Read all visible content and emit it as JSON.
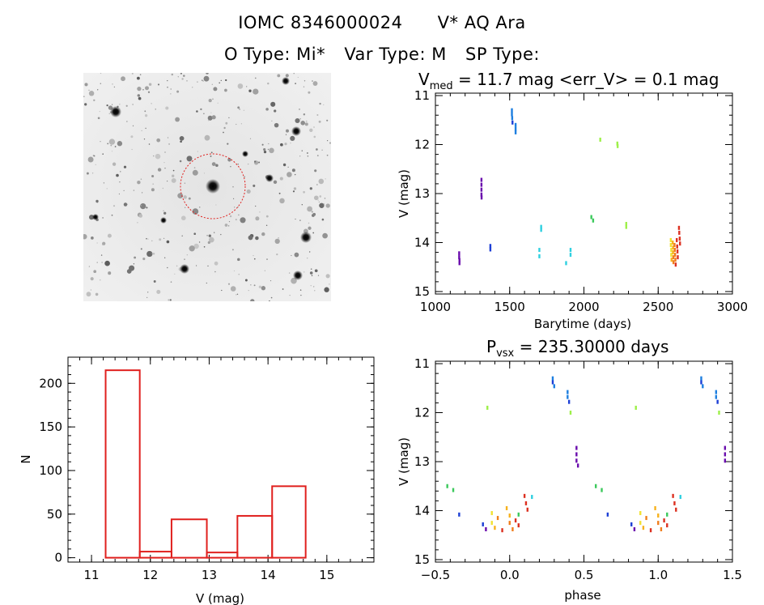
{
  "header": {
    "object_id": "IOMC 8346000024",
    "star_name": "V* AQ Ara",
    "o_type": "O Type: Mi*",
    "var_type": "Var Type: M",
    "sp_type": "SP Type:"
  },
  "colors": {
    "histogram": "#e0201e",
    "target_circle": "#e0201e",
    "season_palette": [
      "#6a0dad",
      "#1d3fd6",
      "#1e7fe0",
      "#2fd0e0",
      "#3cc95c",
      "#9ef04a",
      "#f2e233",
      "#f7b21e",
      "#f07e1c",
      "#dc3020"
    ]
  },
  "chart_data": [
    {
      "panel": "finder-image",
      "type": "image",
      "description_marks": [
        "star field",
        "target circle"
      ]
    },
    {
      "panel": "light-curve",
      "type": "scatter",
      "title": "V_med = 11.7 mag <err_V> = 0.1 mag",
      "title_parts": {
        "v": "V",
        "sub": "med",
        "rest": " = 11.7 mag <err_V> = 0.1 mag"
      },
      "xlabel": "Barytime (days)",
      "ylabel": "V (mag)",
      "xlim": [
        1000,
        3000
      ],
      "ylim": [
        15.05,
        10.95
      ],
      "xticks": [
        1000,
        1500,
        2000,
        2500,
        3000
      ],
      "yticks": [
        11,
        12,
        13,
        14,
        15
      ],
      "points": [
        {
          "x": 1160,
          "y": 14.22,
          "c": 0
        },
        {
          "x": 1160,
          "y": 14.3,
          "c": 0
        },
        {
          "x": 1162,
          "y": 14.36,
          "c": 0
        },
        {
          "x": 1162,
          "y": 14.42,
          "c": 0
        },
        {
          "x": 1310,
          "y": 12.72,
          "c": 0
        },
        {
          "x": 1310,
          "y": 12.82,
          "c": 0
        },
        {
          "x": 1310,
          "y": 12.92,
          "c": 0
        },
        {
          "x": 1310,
          "y": 13.02,
          "c": 0
        },
        {
          "x": 1311,
          "y": 13.08,
          "c": 0
        },
        {
          "x": 1370,
          "y": 14.07,
          "c": 1
        },
        {
          "x": 1370,
          "y": 14.14,
          "c": 1
        },
        {
          "x": 1515,
          "y": 11.3,
          "c": 2
        },
        {
          "x": 1515,
          "y": 11.38,
          "c": 2
        },
        {
          "x": 1517,
          "y": 11.46,
          "c": 2
        },
        {
          "x": 1519,
          "y": 11.55,
          "c": 1
        },
        {
          "x": 1540,
          "y": 11.6,
          "c": 2
        },
        {
          "x": 1540,
          "y": 11.68,
          "c": 2
        },
        {
          "x": 1540,
          "y": 11.75,
          "c": 2
        },
        {
          "x": 1700,
          "y": 14.15,
          "c": 3
        },
        {
          "x": 1700,
          "y": 14.28,
          "c": 3
        },
        {
          "x": 1712,
          "y": 13.68,
          "c": 3
        },
        {
          "x": 1712,
          "y": 13.74,
          "c": 3
        },
        {
          "x": 1880,
          "y": 14.42,
          "c": 3
        },
        {
          "x": 1910,
          "y": 14.15,
          "c": 3
        },
        {
          "x": 1910,
          "y": 14.25,
          "c": 3
        },
        {
          "x": 2050,
          "y": 13.48,
          "c": 4
        },
        {
          "x": 2062,
          "y": 13.55,
          "c": 4
        },
        {
          "x": 2110,
          "y": 11.9,
          "c": 5
        },
        {
          "x": 2225,
          "y": 11.98,
          "c": 5
        },
        {
          "x": 2227,
          "y": 12.03,
          "c": 5
        },
        {
          "x": 2285,
          "y": 13.62,
          "c": 5
        },
        {
          "x": 2285,
          "y": 13.68,
          "c": 5
        },
        {
          "x": 2585,
          "y": 13.95,
          "c": 6
        },
        {
          "x": 2585,
          "y": 14.05,
          "c": 6
        },
        {
          "x": 2588,
          "y": 14.15,
          "c": 6
        },
        {
          "x": 2588,
          "y": 14.25,
          "c": 6
        },
        {
          "x": 2590,
          "y": 14.35,
          "c": 7
        },
        {
          "x": 2598,
          "y": 14.0,
          "c": 7
        },
        {
          "x": 2600,
          "y": 14.1,
          "c": 7
        },
        {
          "x": 2600,
          "y": 14.2,
          "c": 7
        },
        {
          "x": 2602,
          "y": 14.3,
          "c": 8
        },
        {
          "x": 2603,
          "y": 14.4,
          "c": 8
        },
        {
          "x": 2610,
          "y": 14.05,
          "c": 8
        },
        {
          "x": 2612,
          "y": 14.15,
          "c": 8
        },
        {
          "x": 2614,
          "y": 14.25,
          "c": 8
        },
        {
          "x": 2616,
          "y": 14.35,
          "c": 8
        },
        {
          "x": 2618,
          "y": 14.45,
          "c": 9
        },
        {
          "x": 2625,
          "y": 13.95,
          "c": 9
        },
        {
          "x": 2628,
          "y": 14.08,
          "c": 9
        },
        {
          "x": 2630,
          "y": 14.18,
          "c": 9
        },
        {
          "x": 2632,
          "y": 14.3,
          "c": 9
        },
        {
          "x": 2640,
          "y": 13.7,
          "c": 9
        },
        {
          "x": 2642,
          "y": 13.8,
          "c": 9
        },
        {
          "x": 2645,
          "y": 13.92,
          "c": 9
        },
        {
          "x": 2647,
          "y": 14.02,
          "c": 9
        }
      ]
    },
    {
      "panel": "histogram",
      "type": "bar",
      "xlabel": "V (mag)",
      "ylabel": "N",
      "xlim": [
        10.6,
        15.8
      ],
      "ylim": [
        -5,
        230
      ],
      "xticks": [
        11,
        12,
        13,
        14,
        15
      ],
      "yticks": [
        0,
        50,
        100,
        150,
        200
      ],
      "bins": [
        {
          "x0": 11.24,
          "x1": 11.82,
          "n": 215
        },
        {
          "x0": 11.82,
          "x1": 12.36,
          "n": 7
        },
        {
          "x0": 12.36,
          "x1": 12.96,
          "n": 44
        },
        {
          "x0": 12.96,
          "x1": 13.48,
          "n": 6
        },
        {
          "x0": 13.48,
          "x1": 14.07,
          "n": 48
        },
        {
          "x0": 14.07,
          "x1": 14.64,
          "n": 82
        }
      ]
    },
    {
      "panel": "phased-light-curve",
      "type": "scatter",
      "title": "P_vsx = 235.30000 days",
      "title_parts": {
        "p": "P",
        "sub": "vsx",
        "rest": " = 235.30000 days"
      },
      "xlabel": "phase",
      "ylabel": "V (mag)",
      "xlim": [
        -0.5,
        1.5
      ],
      "ylim": [
        15.05,
        10.95
      ],
      "xticks": [
        -0.5,
        0.0,
        0.5,
        1.0,
        1.5
      ],
      "xtick_labels": [
        "−0.5",
        "0.0",
        "0.5",
        "1.0",
        "1.5"
      ],
      "yticks": [
        11,
        12,
        13,
        14,
        15
      ],
      "points": [
        {
          "x": -0.42,
          "y": 13.5,
          "c": 4
        },
        {
          "x": -0.38,
          "y": 13.58,
          "c": 4
        },
        {
          "x": -0.34,
          "y": 14.08,
          "c": 1
        },
        {
          "x": -0.18,
          "y": 14.28,
          "c": 1
        },
        {
          "x": -0.16,
          "y": 14.38,
          "c": 0
        },
        {
          "x": -0.15,
          "y": 11.9,
          "c": 5
        },
        {
          "x": -0.12,
          "y": 14.05,
          "c": 6
        },
        {
          "x": -0.12,
          "y": 14.25,
          "c": 6
        },
        {
          "x": -0.1,
          "y": 14.35,
          "c": 7
        },
        {
          "x": -0.08,
          "y": 14.15,
          "c": 8
        },
        {
          "x": -0.05,
          "y": 14.4,
          "c": 9
        },
        {
          "x": -0.02,
          "y": 13.95,
          "c": 7
        },
        {
          "x": 0.0,
          "y": 14.1,
          "c": 7
        },
        {
          "x": 0.0,
          "y": 14.25,
          "c": 8
        },
        {
          "x": 0.02,
          "y": 14.38,
          "c": 8
        },
        {
          "x": 0.04,
          "y": 14.2,
          "c": 9
        },
        {
          "x": 0.06,
          "y": 14.08,
          "c": 4
        },
        {
          "x": 0.06,
          "y": 14.3,
          "c": 9
        },
        {
          "x": 0.1,
          "y": 13.7,
          "c": 9
        },
        {
          "x": 0.11,
          "y": 13.85,
          "c": 9
        },
        {
          "x": 0.12,
          "y": 13.98,
          "c": 9
        },
        {
          "x": 0.15,
          "y": 13.72,
          "c": 3
        },
        {
          "x": 0.29,
          "y": 11.3,
          "c": 2
        },
        {
          "x": 0.29,
          "y": 11.38,
          "c": 1
        },
        {
          "x": 0.3,
          "y": 11.46,
          "c": 2
        },
        {
          "x": 0.39,
          "y": 11.58,
          "c": 2
        },
        {
          "x": 0.39,
          "y": 11.68,
          "c": 2
        },
        {
          "x": 0.4,
          "y": 11.78,
          "c": 1
        },
        {
          "x": 0.41,
          "y": 12.0,
          "c": 5
        },
        {
          "x": 0.45,
          "y": 12.72,
          "c": 0
        },
        {
          "x": 0.45,
          "y": 12.85,
          "c": 0
        },
        {
          "x": 0.45,
          "y": 12.98,
          "c": 0
        },
        {
          "x": 0.46,
          "y": 13.08,
          "c": 0
        },
        {
          "x": 0.58,
          "y": 13.5,
          "c": 4
        },
        {
          "x": 0.62,
          "y": 13.58,
          "c": 4
        },
        {
          "x": 0.66,
          "y": 14.08,
          "c": 1
        },
        {
          "x": 0.82,
          "y": 14.28,
          "c": 1
        },
        {
          "x": 0.84,
          "y": 14.38,
          "c": 0
        },
        {
          "x": 0.85,
          "y": 11.9,
          "c": 5
        },
        {
          "x": 0.88,
          "y": 14.05,
          "c": 6
        },
        {
          "x": 0.88,
          "y": 14.25,
          "c": 6
        },
        {
          "x": 0.9,
          "y": 14.35,
          "c": 7
        },
        {
          "x": 0.92,
          "y": 14.15,
          "c": 8
        },
        {
          "x": 0.95,
          "y": 14.4,
          "c": 9
        },
        {
          "x": 0.98,
          "y": 13.95,
          "c": 7
        },
        {
          "x": 1.0,
          "y": 14.1,
          "c": 7
        },
        {
          "x": 1.0,
          "y": 14.25,
          "c": 8
        },
        {
          "x": 1.02,
          "y": 14.38,
          "c": 8
        },
        {
          "x": 1.04,
          "y": 14.2,
          "c": 9
        },
        {
          "x": 1.06,
          "y": 14.08,
          "c": 4
        },
        {
          "x": 1.06,
          "y": 14.3,
          "c": 9
        },
        {
          "x": 1.1,
          "y": 13.7,
          "c": 9
        },
        {
          "x": 1.11,
          "y": 13.85,
          "c": 9
        },
        {
          "x": 1.12,
          "y": 13.98,
          "c": 9
        },
        {
          "x": 1.15,
          "y": 13.72,
          "c": 3
        },
        {
          "x": 1.29,
          "y": 11.3,
          "c": 2
        },
        {
          "x": 1.29,
          "y": 11.38,
          "c": 1
        },
        {
          "x": 1.3,
          "y": 11.46,
          "c": 2
        },
        {
          "x": 1.39,
          "y": 11.58,
          "c": 2
        },
        {
          "x": 1.39,
          "y": 11.68,
          "c": 2
        },
        {
          "x": 1.4,
          "y": 11.78,
          "c": 1
        },
        {
          "x": 1.41,
          "y": 12.0,
          "c": 5
        },
        {
          "x": 1.45,
          "y": 12.72,
          "c": 0
        },
        {
          "x": 1.45,
          "y": 12.85,
          "c": 0
        },
        {
          "x": 1.45,
          "y": 12.98,
          "c": 0
        }
      ]
    }
  ]
}
